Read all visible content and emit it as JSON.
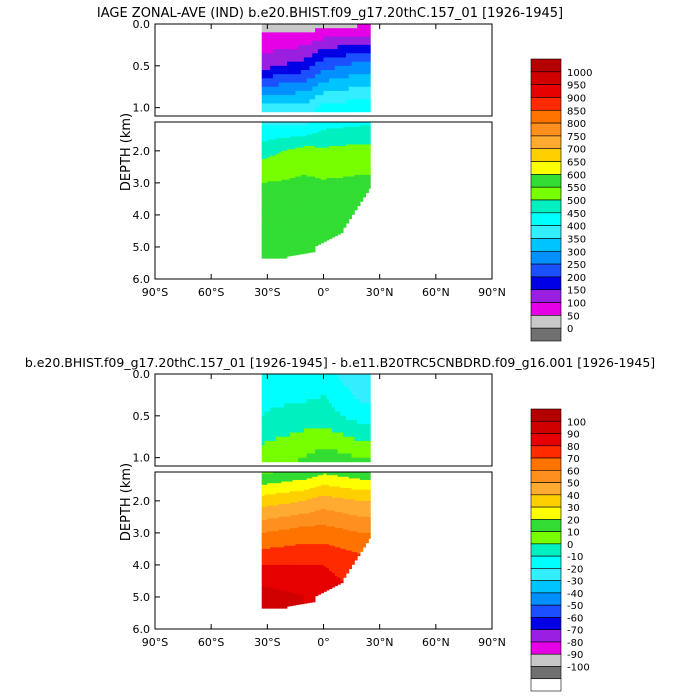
{
  "panels": [
    {
      "title": "IAGE ZONAL-AVE (IND) b.e20.BHIST.f09_g17.20thC.157_01 [1926-1945]",
      "ylabel": "DEPTH (km)",
      "upper_ticks": [
        "0.0",
        "0.5",
        "1.0"
      ],
      "lower_ticks": [
        "2.0",
        "3.0",
        "4.0",
        "5.0",
        "6.0"
      ],
      "xticks": [
        "90°S",
        "60°S",
        "30°S",
        "0°",
        "30°N",
        "60°N",
        "90°N"
      ],
      "colorbar": {
        "labels": [
          "1000",
          "950",
          "900",
          "850",
          "800",
          "750",
          "700",
          "650",
          "600",
          "550",
          "500",
          "450",
          "400",
          "350",
          "300",
          "250",
          "200",
          "150",
          "100",
          "50",
          "0"
        ],
        "colors": [
          "#b30000",
          "#d10000",
          "#e60000",
          "#ff2a00",
          "#ff7300",
          "#ff9020",
          "#ffaa30",
          "#ffd000",
          "#ffff00",
          "#33dd33",
          "#77ff00",
          "#00f0c0",
          "#00ffff",
          "#33eeff",
          "#00c4ff",
          "#0090ff",
          "#1a50ff",
          "#0000e6",
          "#9a1fe0",
          "#e600e6",
          "#c8c8c8",
          "#707070"
        ]
      }
    },
    {
      "title": "b.e20.BHIST.f09_g17.20thC.157_01 [1926-1945] - b.e11.B20TRC5CNBDRD.f09_g16.001 [1926-1945]",
      "ylabel": "DEPTH (km)",
      "upper_ticks": [
        "0.0",
        "0.5",
        "1.0"
      ],
      "lower_ticks": [
        "2.0",
        "3.0",
        "4.0",
        "5.0",
        "6.0"
      ],
      "xticks": [
        "90°S",
        "60°S",
        "30°S",
        "0°",
        "30°N",
        "60°N",
        "90°N"
      ],
      "colorbar": {
        "labels": [
          "100",
          "90",
          "80",
          "70",
          "60",
          "50",
          "40",
          "30",
          "20",
          "10",
          "0",
          "-10",
          "-20",
          "-30",
          "-40",
          "-50",
          "-60",
          "-70",
          "-80",
          "-90",
          "-100"
        ],
        "colors": [
          "#b30000",
          "#d10000",
          "#e60000",
          "#ff2a00",
          "#ff7300",
          "#ff9020",
          "#ffaa30",
          "#ffd000",
          "#ffff00",
          "#33dd33",
          "#77ff00",
          "#00f0c0",
          "#00ffff",
          "#33eeff",
          "#00c4ff",
          "#0090ff",
          "#1a50ff",
          "#0000e6",
          "#9a1fe0",
          "#e600e6",
          "#c8c8c8",
          "#707070",
          "#ffffff"
        ]
      }
    }
  ],
  "chart_data": [
    {
      "type": "heatmap",
      "title": "IAGE ZONAL-AVE (IND) b.e20.BHIST.f09_g17.20thC.157_01 [1926-1945]",
      "xlabel": "",
      "ylabel": "DEPTH (km)",
      "xlim": [
        -90,
        90
      ],
      "ylim": [
        6.0,
        0.0
      ],
      "latitude_coverage": [
        -33,
        25
      ],
      "levels": [
        0,
        50,
        100,
        150,
        200,
        250,
        300,
        350,
        400,
        450,
        500,
        550,
        600,
        650,
        700,
        750,
        800,
        850,
        900,
        950,
        1000
      ],
      "profiles": [
        {
          "lat": -33,
          "depths": [
            0.0,
            0.5,
            1.0,
            2.0,
            3.0,
            4.0,
            5.0
          ],
          "values": [
            25,
            130,
            380,
            480,
            550,
            570,
            575
          ]
        },
        {
          "lat": -10,
          "depths": [
            0.0,
            0.5,
            1.0,
            2.0,
            3.0,
            4.0,
            5.0
          ],
          "values": [
            15,
            175,
            370,
            520,
            560,
            570,
            575
          ]
        },
        {
          "lat": 0,
          "depths": [
            0.0,
            0.5,
            1.0,
            2.0,
            3.0,
            4.0,
            5.0
          ],
          "values": [
            30,
            230,
            420,
            510,
            555,
            570,
            575
          ]
        },
        {
          "lat": 20,
          "depths": [
            0.0,
            0.5,
            1.0,
            2.0,
            3.0,
            4.0,
            5.0
          ],
          "values": [
            40,
            270,
            430,
            520,
            560,
            570,
            575
          ]
        }
      ]
    },
    {
      "type": "heatmap",
      "title": "b.e20.BHIST.f09_g17.20thC.157_01 [1926-1945] - b.e11.B20TRC5CNBDRD.f09_g16.001 [1926-1945]",
      "xlabel": "",
      "ylabel": "DEPTH (km)",
      "xlim": [
        -90,
        90
      ],
      "ylim": [
        6.0,
        0.0
      ],
      "latitude_coverage": [
        -33,
        25
      ],
      "levels": [
        -100,
        -90,
        -80,
        -70,
        -60,
        -50,
        -40,
        -30,
        -20,
        -10,
        0,
        10,
        20,
        30,
        40,
        50,
        60,
        70,
        80,
        90,
        100
      ],
      "profiles": [
        {
          "lat": -33,
          "depths": [
            0.0,
            0.5,
            1.0,
            2.0,
            3.0,
            4.0,
            5.0
          ],
          "values": [
            -5,
            0,
            15,
            45,
            70,
            90,
            105
          ]
        },
        {
          "lat": -10,
          "depths": [
            0.0,
            0.5,
            1.0,
            2.0,
            3.0,
            4.0,
            5.0
          ],
          "values": [
            -10,
            5,
            20,
            50,
            75,
            90,
            100
          ]
        },
        {
          "lat": 0,
          "depths": [
            0.0,
            0.5,
            1.0,
            2.0,
            3.0,
            4.0,
            5.0
          ],
          "values": [
            -5,
            5,
            25,
            55,
            75,
            90,
            95
          ]
        },
        {
          "lat": 20,
          "depths": [
            0.0,
            0.5,
            1.0,
            2.0,
            3.0,
            4.0,
            5.0
          ],
          "values": [
            -20,
            -5,
            20,
            50,
            70,
            85,
            90
          ]
        }
      ]
    }
  ]
}
